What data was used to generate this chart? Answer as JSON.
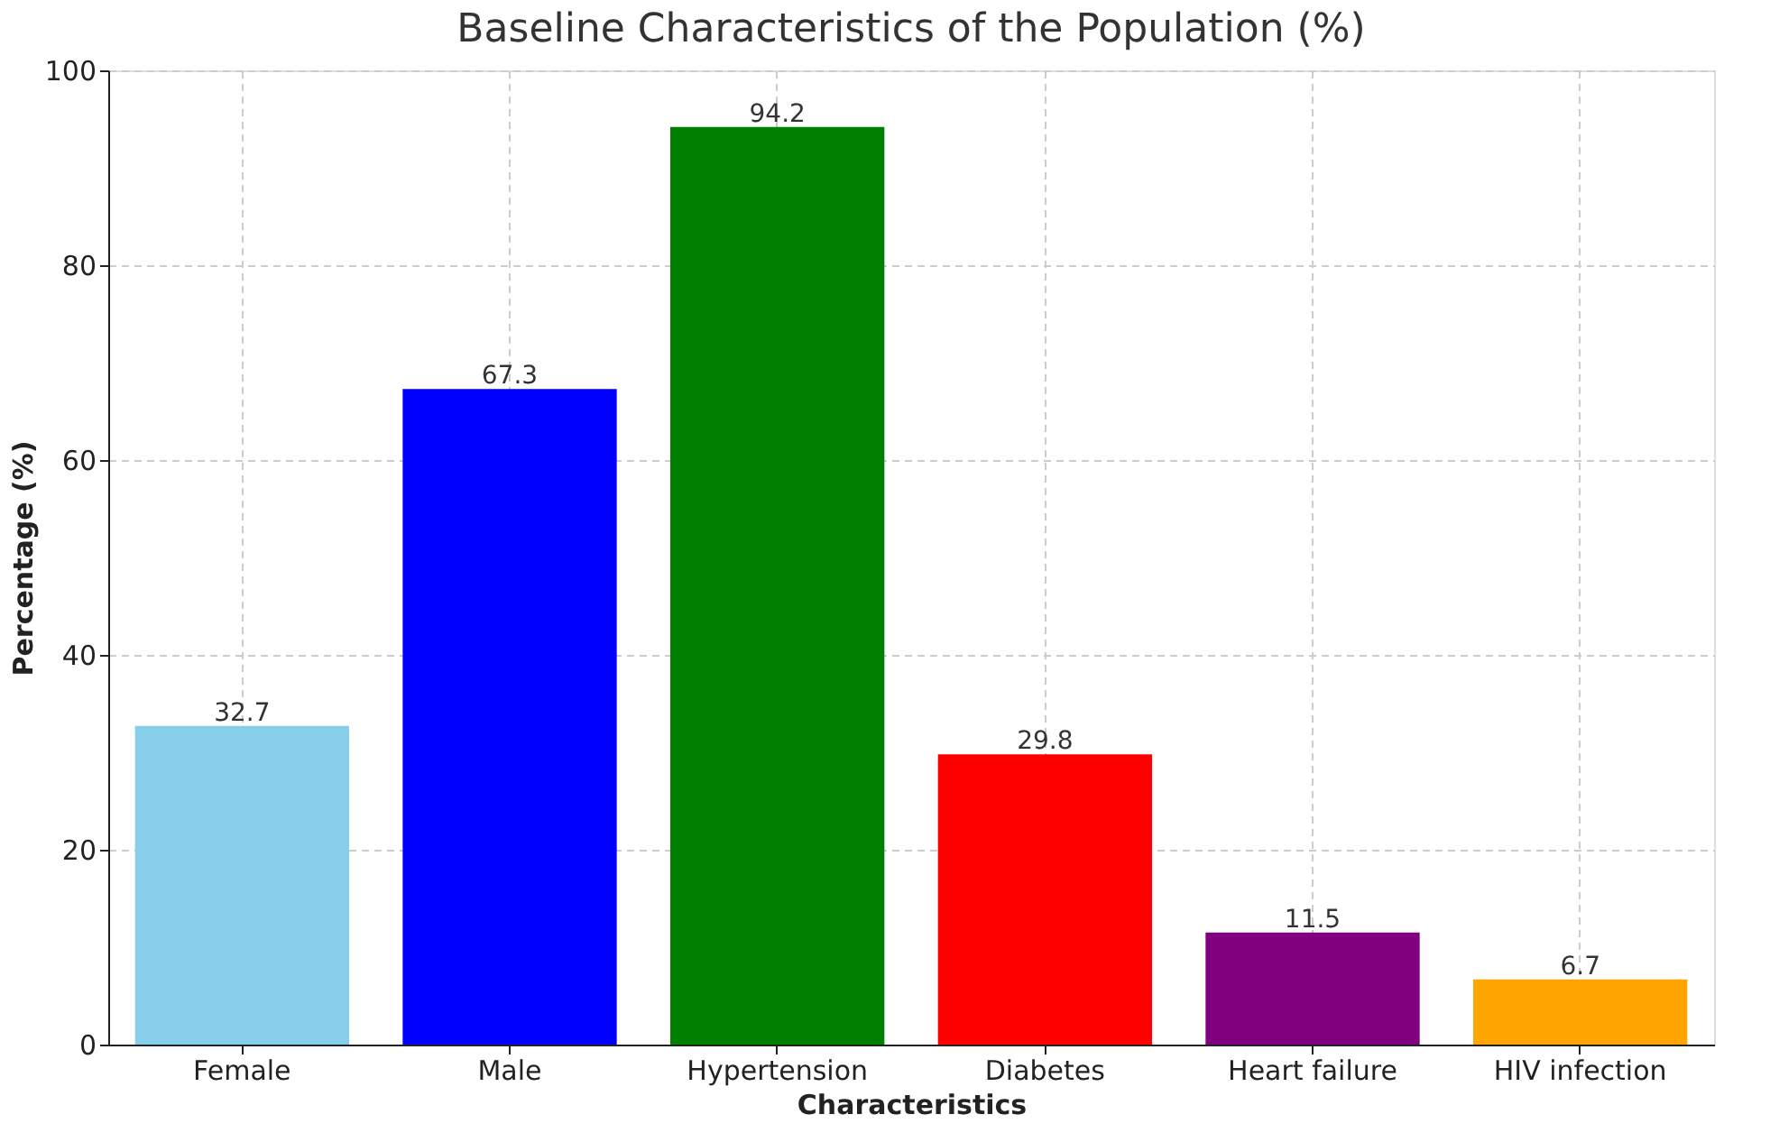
{
  "chart_data": {
    "type": "bar",
    "title": "Baseline Characteristics of the Population (%)",
    "xlabel": "Characteristics",
    "ylabel": "Percentage (%)",
    "categories": [
      "Female",
      "Male",
      "Hypertension",
      "Diabetes",
      "Heart failure",
      "HIV infection"
    ],
    "values": [
      32.7,
      67.3,
      94.2,
      29.8,
      11.5,
      6.7
    ],
    "colors": [
      "#87ceeb",
      "#0000ff",
      "#008000",
      "#ff0000",
      "#800080",
      "#ffa500"
    ],
    "ylim": [
      0,
      100
    ],
    "yticks": [
      0,
      20,
      40,
      60,
      80,
      100
    ],
    "grid": true,
    "data_labels": true
  }
}
